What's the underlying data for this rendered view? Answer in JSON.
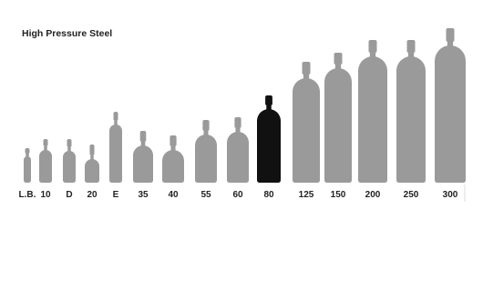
{
  "title": "High Pressure Steel",
  "cylinders": [
    {
      "label": "L.B.",
      "color": "#9a9a9a"
    },
    {
      "label": "10",
      "color": "#9a9a9a"
    },
    {
      "label": "D",
      "color": "#9a9a9a"
    },
    {
      "label": "20",
      "color": "#9a9a9a"
    },
    {
      "label": "E",
      "color": "#9a9a9a"
    },
    {
      "label": "35",
      "color": "#9a9a9a"
    },
    {
      "label": "40",
      "color": "#9a9a9a"
    },
    {
      "label": "55",
      "color": "#9a9a9a"
    },
    {
      "label": "60",
      "color": "#9a9a9a"
    },
    {
      "label": "80",
      "color": "#111111"
    },
    {
      "label": "125",
      "color": "#9a9a9a"
    },
    {
      "label": "150",
      "color": "#9a9a9a"
    },
    {
      "label": "200",
      "color": "#9a9a9a"
    },
    {
      "label": "250",
      "color": "#9a9a9a"
    },
    {
      "label": "300",
      "color": "#9a9a9a"
    }
  ]
}
